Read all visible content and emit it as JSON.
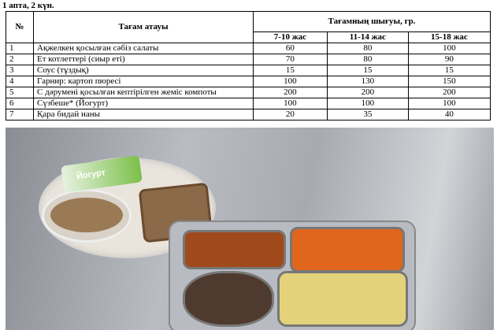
{
  "caption": "1 апта, 2 күн.",
  "table": {
    "headers": {
      "num": "№",
      "name": "Тағам атауы",
      "output": "Тағамның шығуы, гр.",
      "ages": [
        "7-10 жас",
        "11-14 жас",
        "15-18 жас"
      ]
    },
    "rows": [
      {
        "num": "1",
        "name": "Ақжелкен қосылған сәбіз салаты",
        "values": [
          "60",
          "80",
          "100"
        ]
      },
      {
        "num": "2",
        "name": "Ет котлеттері (сиыр еті)",
        "values": [
          "70",
          "80",
          "90"
        ]
      },
      {
        "num": "3",
        "name": "Соус (тұздық)",
        "values": [
          "15",
          "15",
          "15"
        ]
      },
      {
        "num": "4",
        "name": "Гарнир: картоп пюресі",
        "values": [
          "100",
          "130",
          "150"
        ]
      },
      {
        "num": "5",
        "name": "С дәрумені қосылған кептірілген жеміс компоты",
        "values": [
          "200",
          "200",
          "200"
        ]
      },
      {
        "num": "6",
        "name": "Сүзбеше* (Йогурт)",
        "values": [
          "100",
          "100",
          "100"
        ]
      },
      {
        "num": "7",
        "name": "Қара бидай наны",
        "values": [
          "20",
          "35",
          "40"
        ]
      }
    ]
  },
  "photo": {
    "yogurt_label": "Йогурт"
  }
}
